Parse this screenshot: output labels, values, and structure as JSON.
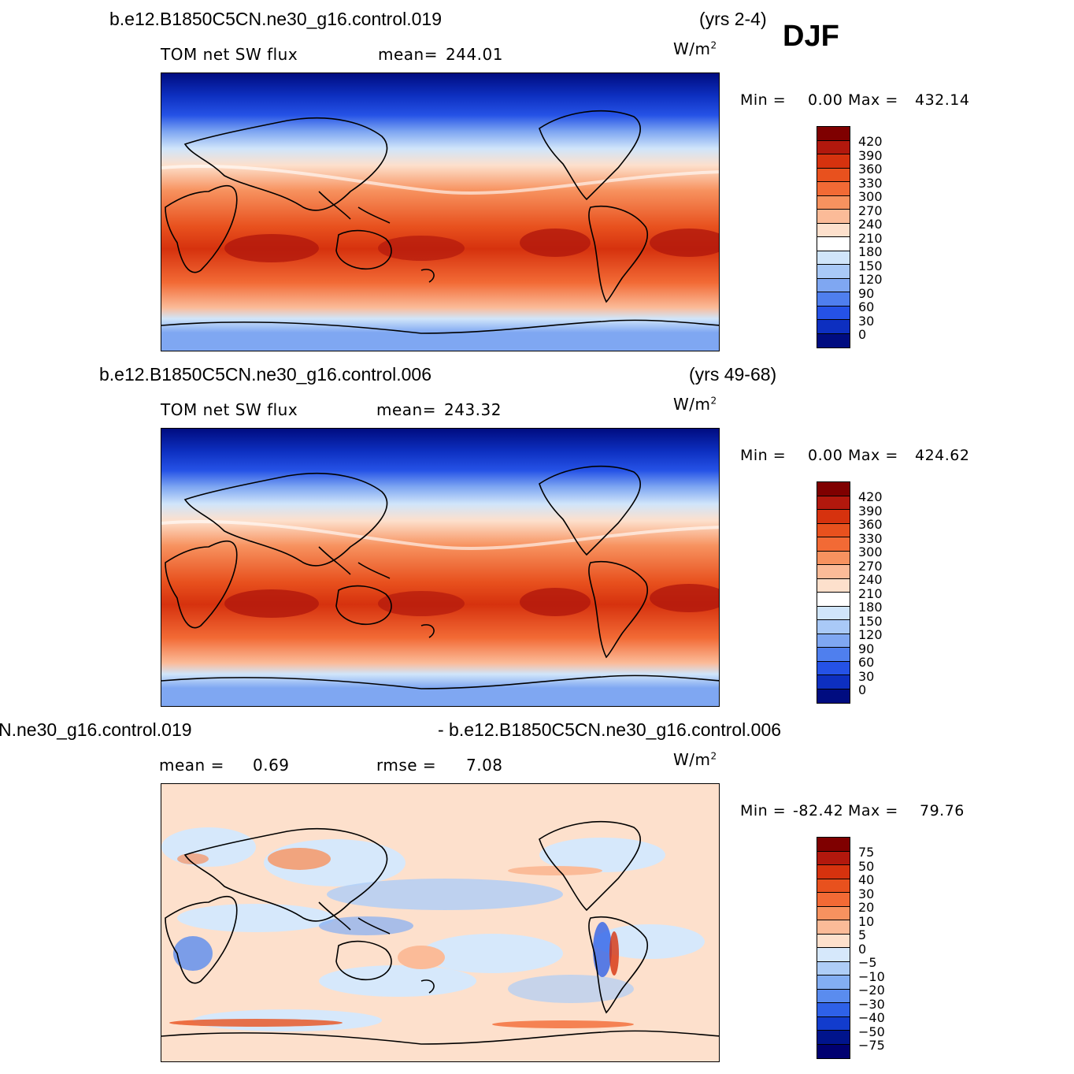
{
  "season": "DJF",
  "panels": [
    {
      "case_title": "b.e12.B1850C5CN.ne30_g16.control.019",
      "years": "(yrs 2-4)",
      "variable": "TOM net SW flux",
      "stat_label": "mean=",
      "stat_value": "244.01",
      "units": "W/m",
      "units_sup": "2",
      "min_label": "Min =",
      "min_value": "0.00",
      "max_label": "Max =",
      "max_value": "432.14",
      "colorbar_levels": [
        "420",
        "390",
        "360",
        "330",
        "300",
        "270",
        "240",
        "210",
        "180",
        "150",
        "120",
        "90",
        "60",
        "30",
        "0"
      ]
    },
    {
      "case_title": "b.e12.B1850C5CN.ne30_g16.control.006",
      "years": "(yrs 49-68)",
      "variable": "TOM net SW flux",
      "stat_label": "mean=",
      "stat_value": "243.32",
      "units": "W/m",
      "units_sup": "2",
      "min_label": "Min =",
      "min_value": "0.00",
      "max_label": "Max =",
      "max_value": "424.62",
      "colorbar_levels": [
        "420",
        "390",
        "360",
        "330",
        "300",
        "270",
        "240",
        "210",
        "180",
        "150",
        "120",
        "90",
        "60",
        "30",
        "0"
      ]
    },
    {
      "case_title_left": "N.ne30_g16.control.019",
      "case_title_right": "- b.e12.B1850C5CN.ne30_g16.control.006",
      "mean_label": "mean =",
      "mean_value": "0.69",
      "rmse_label": "rmse =",
      "rmse_value": "7.08",
      "units": "W/m",
      "units_sup": "2",
      "min_label": "Min =",
      "min_value": "-82.42",
      "max_label": "Max =",
      "max_value": "79.76",
      "colorbar_levels": [
        "75",
        "50",
        "40",
        "30",
        "20",
        "10",
        "5",
        "0",
        "−5",
        "−10",
        "−20",
        "−30",
        "−40",
        "−50",
        "−75"
      ]
    }
  ],
  "colors": {
    "abs_scale": [
      "#7f0000",
      "#b2180d",
      "#d6320e",
      "#e8511e",
      "#f26a35",
      "#f7925f",
      "#fbbb98",
      "#fde0cc",
      "#ffffff",
      "#d0e5fa",
      "#a9c9f7",
      "#7fa7f2",
      "#4f7fee",
      "#2552e6",
      "#0d2fc0",
      "#000c80"
    ],
    "diff_scale": [
      "#7f0000",
      "#b2180d",
      "#d6320e",
      "#e8511e",
      "#f26a35",
      "#f7925f",
      "#fbbb98",
      "#fde0cc",
      "#d6e8fb",
      "#aecdf7",
      "#83aef3",
      "#5a8cef",
      "#2e61e8",
      "#123ccd",
      "#00148c",
      "#000070"
    ]
  }
}
